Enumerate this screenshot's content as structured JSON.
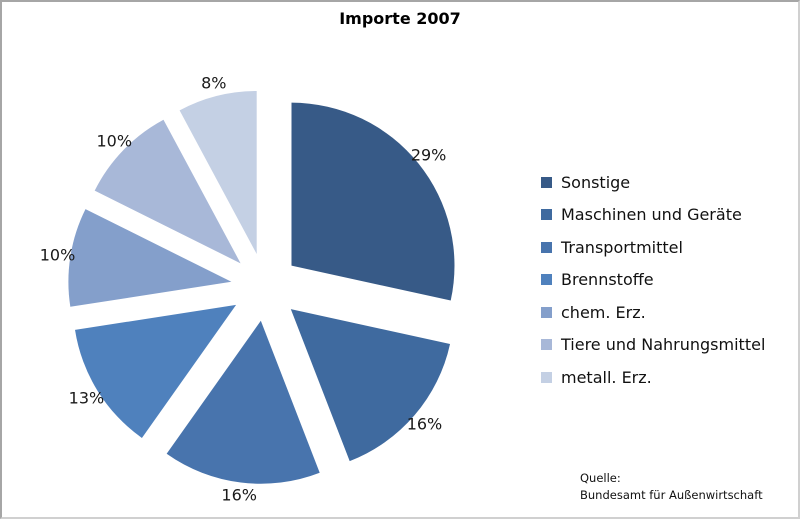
{
  "chart_data": {
    "type": "pie",
    "title": "Importe 2007",
    "categories": [
      "Sonstige",
      "Maschinen und Geräte",
      "Transportmittel",
      "Brennstoffe",
      "chem. Erz.",
      "Tiere und Nahrungsmittel",
      "metall. Erz."
    ],
    "values": [
      29,
      16,
      16,
      13,
      10,
      10,
      8
    ],
    "labels": [
      "29%",
      "16%",
      "16%",
      "13%",
      "10%",
      "10%",
      "8%"
    ],
    "colors": [
      "#375a87",
      "#3f6a9f",
      "#4874ad",
      "#4f81bd",
      "#849fcb",
      "#a8b8d8",
      "#c4d0e4"
    ],
    "legend_position": "right",
    "exploded": true,
    "start_angle_deg": 0,
    "direction": "clockwise"
  },
  "chart": {
    "title": "Importe 2007",
    "source_label": "Quelle:",
    "source_text": "Bundesamt für Außenwirtschaft"
  }
}
